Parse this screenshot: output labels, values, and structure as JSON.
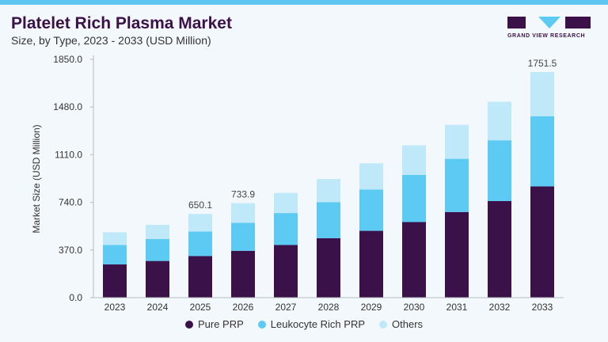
{
  "header": {
    "title": "Platelet Rich Plasma Market",
    "subtitle": "Size, by Type, 2023 - 2033 (USD Million)",
    "logo_text": "GRAND VIEW RESEARCH"
  },
  "colors": {
    "pure_prp": "#3a1149",
    "leukocyte_rich_prp": "#5ccaf3",
    "others": "#bfe8f9",
    "accent": "#5dc5ef"
  },
  "chart_data": {
    "type": "bar",
    "stacked": true,
    "title": "Platelet Rich Plasma Market",
    "subtitle": "Size, by Type, 2023 - 2033 (USD Million)",
    "xlabel": "",
    "ylabel": "Market Size (USD Million)",
    "ylim": [
      0,
      1850
    ],
    "yticks": [
      "0.0",
      "370.0",
      "740.0",
      "1110.0",
      "1480.0",
      "1850.0"
    ],
    "grid": false,
    "legend": "bottom",
    "categories": [
      "2023",
      "2024",
      "2025",
      "2026",
      "2027",
      "2028",
      "2029",
      "2030",
      "2031",
      "2032",
      "2033"
    ],
    "series": [
      {
        "name": "Pure PRP",
        "values": [
          258,
          285,
          323,
          364,
          409,
          462,
          519,
          587,
          665,
          750,
          864
        ]
      },
      {
        "name": "Leukocyte Rich PRP",
        "values": [
          151,
          171,
          191,
          217,
          248,
          280,
          321,
          366,
          413,
          472,
          545
        ]
      },
      {
        "name": "Others",
        "values": [
          99,
          109,
          136,
          153,
          156,
          179,
          203,
          230,
          264,
          299,
          342.5
        ]
      }
    ],
    "data_labels": [
      {
        "category": "2025",
        "text": "650.1"
      },
      {
        "category": "2026",
        "text": "733.9"
      },
      {
        "category": "2033",
        "text": "1751.5"
      }
    ]
  }
}
